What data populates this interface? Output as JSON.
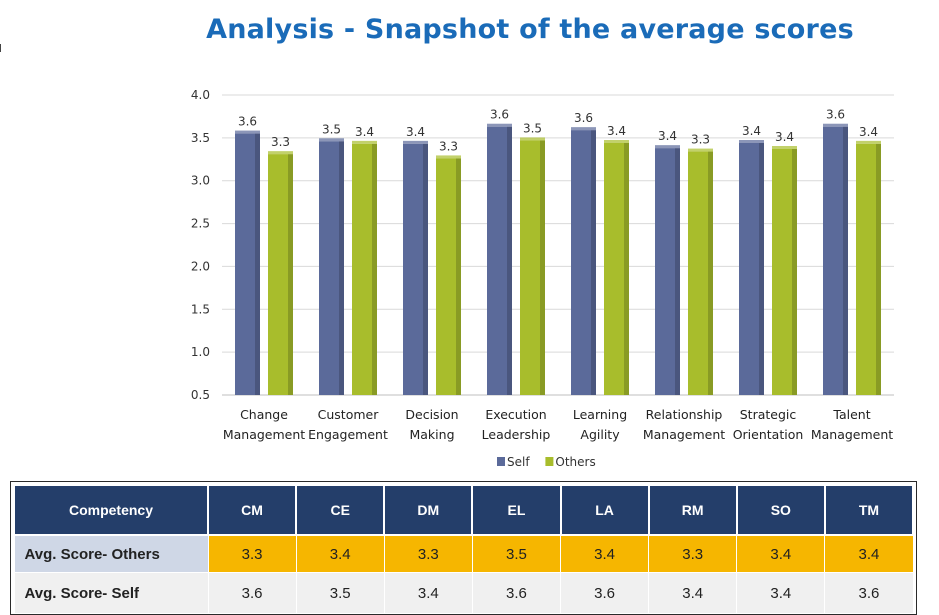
{
  "title": "Analysis - Snapshot of the average scores",
  "chart_data": {
    "type": "bar",
    "categories": [
      [
        "Change",
        "Management"
      ],
      [
        "Customer",
        "Engagement"
      ],
      [
        "Decision",
        "Making"
      ],
      [
        "Execution",
        "Leadership"
      ],
      [
        "Learning",
        "Agility"
      ],
      [
        "Relationship",
        "Management"
      ],
      [
        "Strategic",
        "Orientation"
      ],
      [
        "Talent",
        "Management"
      ]
    ],
    "series": [
      {
        "name": "Self",
        "color": "#5b6a9a",
        "values": [
          3.55,
          3.46,
          3.43,
          3.63,
          3.59,
          3.38,
          3.44,
          3.63
        ],
        "labels": [
          "3.6",
          "3.5",
          "3.4",
          "3.6",
          "3.6",
          "3.4",
          "3.4",
          "3.6"
        ]
      },
      {
        "name": "Others",
        "color": "#a8bd2c",
        "values": [
          3.31,
          3.43,
          3.26,
          3.47,
          3.44,
          3.34,
          3.37,
          3.43
        ],
        "labels": [
          "3.3",
          "3.4",
          "3.3",
          "3.5",
          "3.4",
          "3.3",
          "3.4",
          "3.4"
        ]
      }
    ],
    "ylim": [
      0.5,
      4.0
    ],
    "yticks": [
      "0.5",
      "1.0",
      "1.5",
      "2.0",
      "2.5",
      "3.0",
      "3.5",
      "4.0"
    ],
    "grid": true,
    "legend": "bottom"
  },
  "table": {
    "header": [
      "Competency",
      "CM",
      "CE",
      "DM",
      "EL",
      "LA",
      "RM",
      "SO",
      "TM"
    ],
    "rows": [
      {
        "label": "Avg. Score- Others",
        "values": [
          "3.3",
          "3.4",
          "3.3",
          "3.5",
          "3.4",
          "3.3",
          "3.4",
          "3.4"
        ]
      },
      {
        "label": "Avg. Score- Self",
        "values": [
          "3.6",
          "3.5",
          "3.4",
          "3.6",
          "3.6",
          "3.4",
          "3.4",
          "3.6"
        ]
      }
    ]
  }
}
